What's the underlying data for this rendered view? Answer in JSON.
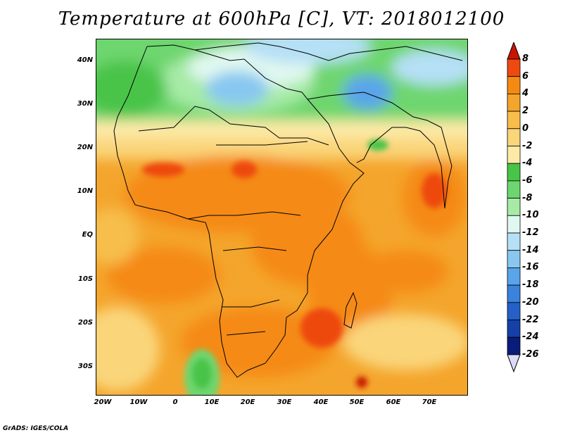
{
  "title": "Temperature at 600hPa [C], VT: 2018012100",
  "credit": "GrADS: IGES/COLA",
  "map": {
    "lat_labels": [
      "40N",
      "30N",
      "20N",
      "10N",
      "EQ",
      "10S",
      "20S",
      "30S"
    ],
    "lon_labels": [
      "20W",
      "10W",
      "0",
      "10E",
      "20E",
      "30E",
      "40E",
      "50E",
      "60E",
      "70E"
    ]
  },
  "colorbar": {
    "labels": [
      "8",
      "6",
      "4",
      "2",
      "0",
      "-2",
      "-4",
      "-6",
      "-8",
      "-10",
      "-12",
      "-14",
      "-16",
      "-18",
      "-20",
      "-22",
      "-24",
      "-26"
    ],
    "colors": [
      "#c81400",
      "#ee4a10",
      "#f58a12",
      "#f4a52c",
      "#f7be4c",
      "#fad57a",
      "#fdeaa8",
      "#48c448",
      "#6ed66e",
      "#a6eaa6",
      "#e0f8f0",
      "#b6e0f6",
      "#88c8f0",
      "#5aa4ea",
      "#3a82dc",
      "#2460c8",
      "#1440a8",
      "#0a1c7a",
      "#dcdcf8"
    ]
  }
}
